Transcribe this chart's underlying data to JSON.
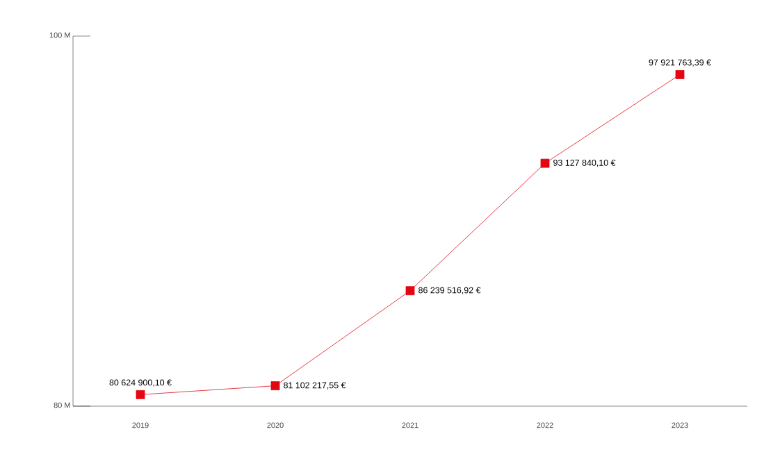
{
  "chart_data": {
    "type": "line",
    "categories": [
      "2019",
      "2020",
      "2021",
      "2022",
      "2023"
    ],
    "values": [
      80624900.1,
      81102217.55,
      86239516.92,
      93127840.1,
      97921763.39
    ],
    "value_labels": [
      "80 624 900,10 €",
      "81 102 217,55 €",
      "86 239 516,92 €",
      "93 127 840,10 €",
      "97 921 763,39 €"
    ],
    "color": "#e30613",
    "marker": "square",
    "line_style": "solid",
    "ylim": [
      80000000,
      100000000
    ],
    "yticks": [
      {
        "value": 80000000,
        "label": "80 M"
      },
      {
        "value": 100000000,
        "label": "100 M"
      }
    ]
  }
}
